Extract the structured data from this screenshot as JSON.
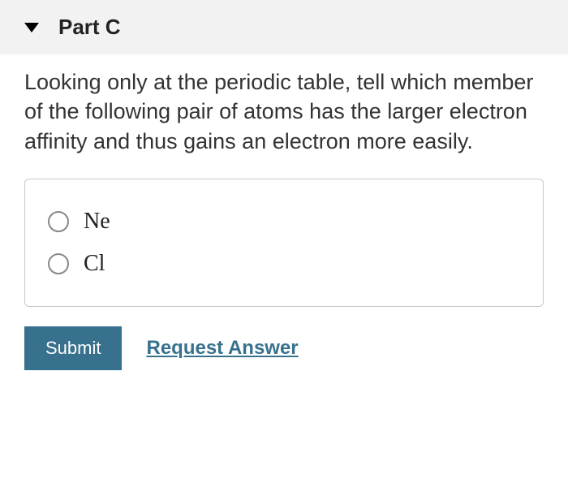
{
  "part": {
    "title": "Part C"
  },
  "question": {
    "text": "Looking only at the periodic table, tell which member of the following pair of atoms has the larger electron affinity and thus gains an electron more easily."
  },
  "options": [
    {
      "label": "Ne"
    },
    {
      "label": "Cl"
    }
  ],
  "actions": {
    "submit_label": "Submit",
    "request_label": "Request Answer"
  },
  "colors": {
    "header_bg": "#f2f2f2",
    "box_border": "#c8c8c8",
    "button_bg": "#37718e",
    "link_color": "#37718e",
    "text_color": "#333333"
  }
}
